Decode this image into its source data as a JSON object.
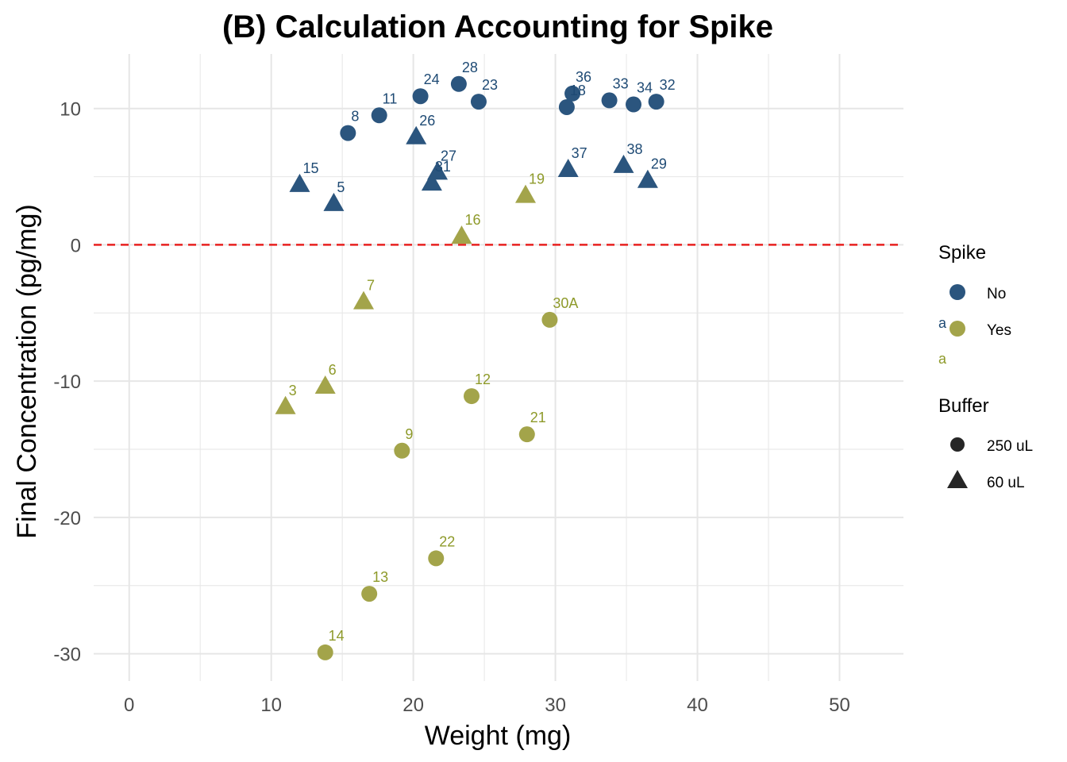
{
  "colors": {
    "spike_no": "#2b557e",
    "spike_yes": "#a3a44a",
    "label_no": "#1e4a74",
    "label_yes": "#8e9a2a",
    "reference_line": "#e8201f",
    "grid": "#e6e6e6",
    "buffer_key": "#262626"
  },
  "chart_data": {
    "type": "scatter",
    "title": "(B) Calculation Accounting for Spike",
    "xlabel": "Weight (mg)",
    "ylabel": "Final Concentration (pg/mg)",
    "xlim": [
      -2.5,
      54.5
    ],
    "ylim": [
      -32,
      14
    ],
    "x_ticks": [
      0,
      10,
      20,
      30,
      40,
      50
    ],
    "y_ticks": [
      10,
      0,
      -10,
      -20,
      -30
    ],
    "x_tick_labels": [
      "0",
      "10",
      "20",
      "30",
      "40",
      "50"
    ],
    "y_tick_labels": [
      "10",
      "0",
      "-10",
      "-20",
      "-30"
    ],
    "grid": true,
    "reference_line": {
      "y": 0,
      "style": "dashed"
    },
    "legend": {
      "position": "right",
      "color_title": "Spike",
      "color_items": [
        "No",
        "Yes"
      ],
      "text_key": "a",
      "shape_title": "Buffer",
      "shape_items": [
        "250 uL",
        "60 uL"
      ]
    },
    "points": [
      {
        "label": "28",
        "x": 23.2,
        "y": 11.8,
        "spike": "No",
        "buffer": "250 uL"
      },
      {
        "label": "24",
        "x": 20.5,
        "y": 10.9,
        "spike": "No",
        "buffer": "250 uL"
      },
      {
        "label": "23",
        "x": 24.6,
        "y": 10.5,
        "spike": "No",
        "buffer": "250 uL"
      },
      {
        "label": "11",
        "x": 17.6,
        "y": 9.5,
        "spike": "No",
        "buffer": "250 uL"
      },
      {
        "label": "8",
        "x": 15.4,
        "y": 8.2,
        "spike": "No",
        "buffer": "250 uL"
      },
      {
        "label": "36",
        "x": 31.2,
        "y": 11.1,
        "spike": "No",
        "buffer": "250 uL"
      },
      {
        "label": "18",
        "x": 30.8,
        "y": 10.1,
        "spike": "No",
        "buffer": "250 uL"
      },
      {
        "label": "33",
        "x": 33.8,
        "y": 10.6,
        "spike": "No",
        "buffer": "250 uL"
      },
      {
        "label": "34",
        "x": 35.5,
        "y": 10.3,
        "spike": "No",
        "buffer": "250 uL"
      },
      {
        "label": "32",
        "x": 37.1,
        "y": 10.5,
        "spike": "No",
        "buffer": "250 uL"
      },
      {
        "label": "26",
        "x": 20.2,
        "y": 7.9,
        "spike": "No",
        "buffer": "60 uL"
      },
      {
        "label": "27",
        "x": 21.7,
        "y": 5.3,
        "spike": "No",
        "buffer": "60 uL"
      },
      {
        "label": "31",
        "x": 21.3,
        "y": 4.5,
        "spike": "No",
        "buffer": "60 uL"
      },
      {
        "label": "15",
        "x": 12.0,
        "y": 4.4,
        "spike": "No",
        "buffer": "60 uL"
      },
      {
        "label": "5",
        "x": 14.4,
        "y": 3.0,
        "spike": "No",
        "buffer": "60 uL"
      },
      {
        "label": "37",
        "x": 30.9,
        "y": 5.5,
        "spike": "No",
        "buffer": "60 uL"
      },
      {
        "label": "38",
        "x": 34.8,
        "y": 5.8,
        "spike": "No",
        "buffer": "60 uL"
      },
      {
        "label": "29",
        "x": 36.5,
        "y": 4.7,
        "spike": "No",
        "buffer": "60 uL"
      },
      {
        "label": "19",
        "x": 27.9,
        "y": 3.6,
        "spike": "Yes",
        "buffer": "60 uL"
      },
      {
        "label": "16",
        "x": 23.4,
        "y": 0.6,
        "spike": "Yes",
        "buffer": "60 uL"
      },
      {
        "label": "7",
        "x": 16.5,
        "y": -4.2,
        "spike": "Yes",
        "buffer": "60 uL"
      },
      {
        "label": "6",
        "x": 13.8,
        "y": -10.4,
        "spike": "Yes",
        "buffer": "60 uL"
      },
      {
        "label": "3",
        "x": 11.0,
        "y": -11.9,
        "spike": "Yes",
        "buffer": "60 uL"
      },
      {
        "label": "30A",
        "x": 29.6,
        "y": -5.5,
        "spike": "Yes",
        "buffer": "250 uL"
      },
      {
        "label": "12",
        "x": 24.1,
        "y": -11.1,
        "spike": "Yes",
        "buffer": "250 uL"
      },
      {
        "label": "21",
        "x": 28.0,
        "y": -13.9,
        "spike": "Yes",
        "buffer": "250 uL"
      },
      {
        "label": "9",
        "x": 19.2,
        "y": -15.1,
        "spike": "Yes",
        "buffer": "250 uL"
      },
      {
        "label": "22",
        "x": 21.6,
        "y": -23.0,
        "spike": "Yes",
        "buffer": "250 uL"
      },
      {
        "label": "13",
        "x": 16.9,
        "y": -25.6,
        "spike": "Yes",
        "buffer": "250 uL"
      },
      {
        "label": "14",
        "x": 13.8,
        "y": -29.9,
        "spike": "Yes",
        "buffer": "250 uL"
      }
    ]
  }
}
